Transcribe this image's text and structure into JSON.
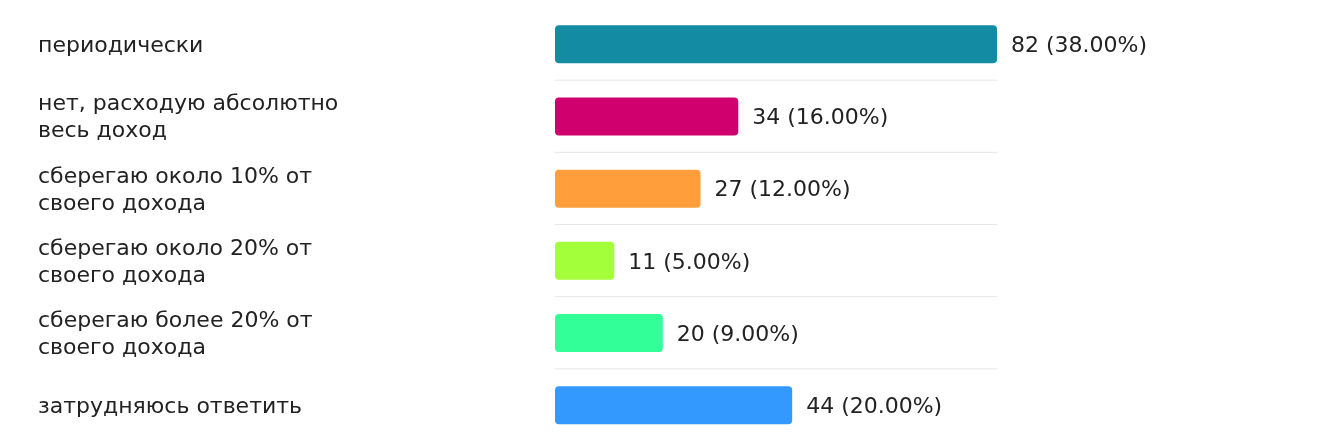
{
  "chart_data": {
    "type": "bar",
    "orientation": "horizontal",
    "categories": [
      "периодически",
      "нет, расходую абсолютно весь доход",
      "сберегаю около 10% от своего дохода",
      "сберегаю около 20% от своего дохода",
      "сберегаю более 20% от своего дохода",
      "затрудняюсь ответить"
    ],
    "values": [
      82,
      34,
      27,
      11,
      20,
      44
    ],
    "value_labels": [
      "82 (38.00%)",
      "34 (16.00%)",
      "27 (12.00%)",
      "11 (5.00%)",
      "20 (9.00%)",
      "44 (20.00%)"
    ],
    "colors": [
      "#138ba3",
      "#d0006f",
      "#ff9e3a",
      "#a3ff3a",
      "#33ff99",
      "#3399ff"
    ],
    "grid": "y"
  }
}
